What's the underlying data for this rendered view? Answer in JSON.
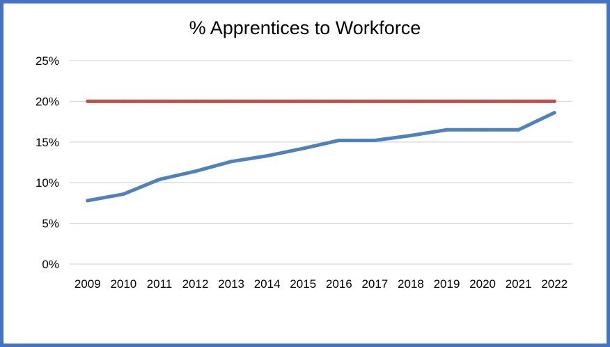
{
  "chart_data": {
    "type": "line",
    "title": "% Apprentices to Workforce",
    "xlabel": "",
    "ylabel": "",
    "categories": [
      "2009",
      "2010",
      "2011",
      "2012",
      "2013",
      "2014",
      "2015",
      "2016",
      "2017",
      "2018",
      "2019",
      "2020",
      "2021",
      "2022"
    ],
    "y_ticks": [
      "0%",
      "5%",
      "10%",
      "15%",
      "20%",
      "25%"
    ],
    "ylim": [
      0,
      25
    ],
    "grid": true,
    "legend": "none",
    "series": [
      {
        "color": "#4f81bd",
        "values": [
          7.8,
          8.6,
          10.4,
          11.4,
          12.6,
          13.3,
          14.2,
          15.2,
          15.2,
          15.8,
          16.5,
          16.5,
          16.5,
          18.6
        ]
      },
      {
        "color": "#c0504d",
        "values": [
          20,
          20,
          20,
          20,
          20,
          20,
          20,
          20,
          20,
          20,
          20,
          20,
          20,
          20
        ]
      }
    ]
  },
  "frame": {
    "border_color": "#4472c4"
  }
}
